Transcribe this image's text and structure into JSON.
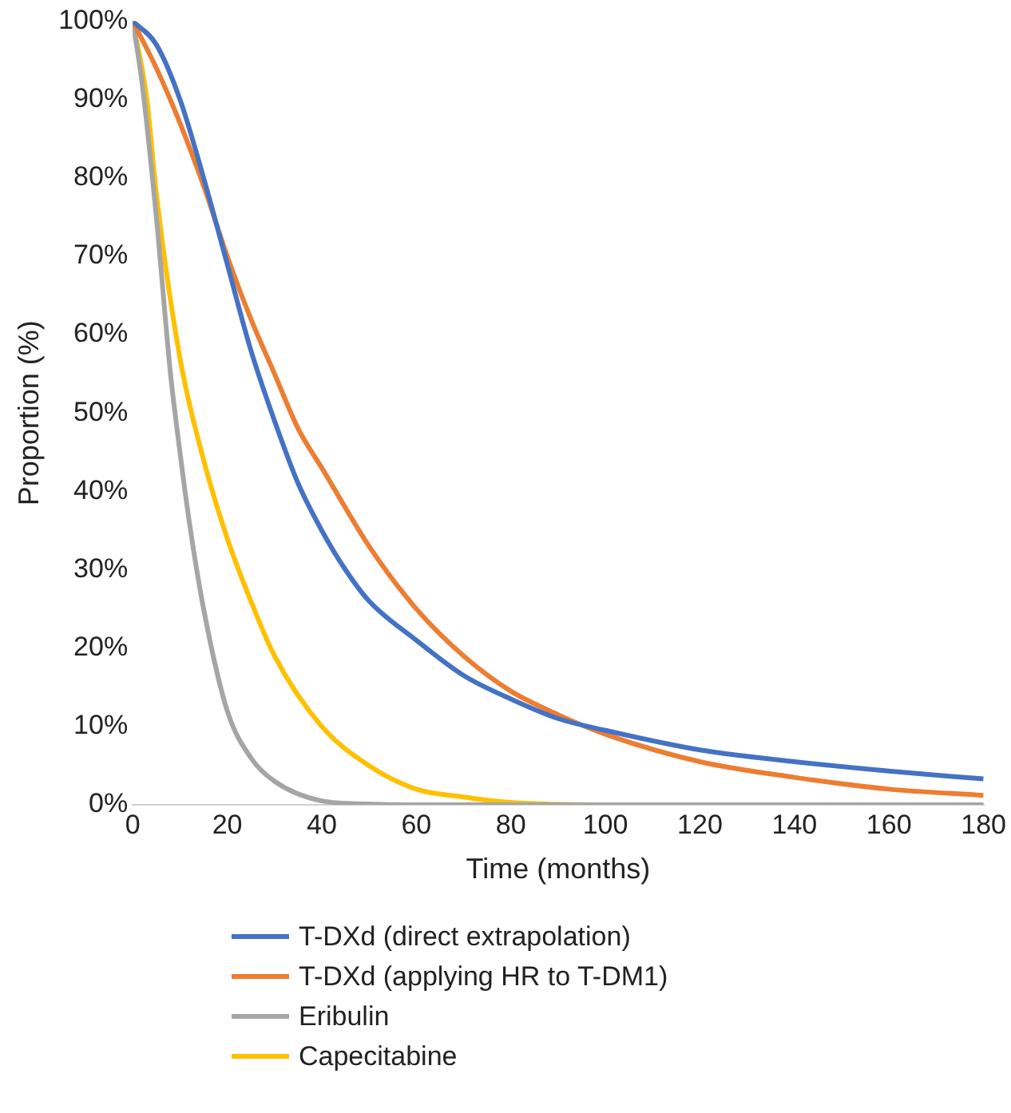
{
  "chart_data": {
    "type": "line",
    "xlabel": "Time (months)",
    "ylabel": "Proportion (%)",
    "xlim": [
      0,
      180
    ],
    "xticks": [
      0,
      20,
      40,
      60,
      80,
      100,
      120,
      140,
      160,
      180
    ],
    "ylim": [
      0,
      100
    ],
    "yticks": [
      {
        "value": 0,
        "label": "0%"
      },
      {
        "value": 10,
        "label": "10%"
      },
      {
        "value": 20,
        "label": "20%"
      },
      {
        "value": 30,
        "label": "30%"
      },
      {
        "value": 40,
        "label": "40%"
      },
      {
        "value": 50,
        "label": "50%"
      },
      {
        "value": 60,
        "label": "60%"
      },
      {
        "value": 70,
        "label": "70%"
      },
      {
        "value": 80,
        "label": "80%"
      },
      {
        "value": 90,
        "label": "90%"
      },
      {
        "value": 100,
        "label": "100%"
      }
    ],
    "grid": false,
    "legend": "bottom",
    "marker": "none",
    "line_style": "solid",
    "series": [
      {
        "name": "T-DXd (direct extrapolation)",
        "color": "#4472c4",
        "x": [
          0,
          5,
          10,
          15,
          20,
          25,
          30,
          35,
          40,
          45,
          50,
          60,
          70,
          80,
          90,
          100,
          120,
          140,
          160,
          180
        ],
        "values": [
          100,
          97,
          90,
          80,
          69,
          58,
          49,
          41,
          35,
          30,
          26,
          21,
          16.5,
          13.5,
          11,
          9.5,
          7,
          5.5,
          4.3,
          3.3
        ]
      },
      {
        "name": "T-DXd (applying HR to T-DM1)",
        "color": "#ed7d31",
        "x": [
          0,
          5,
          10,
          15,
          20,
          25,
          30,
          35,
          40,
          50,
          60,
          70,
          80,
          90,
          100,
          120,
          140,
          160,
          180
        ],
        "values": [
          100,
          94,
          87,
          79,
          70,
          62,
          55,
          48,
          43,
          33,
          25,
          19,
          14.5,
          11.5,
          9,
          5.5,
          3.5,
          2,
          1.2
        ]
      },
      {
        "name": "Eribulin",
        "color": "#a5a5a5",
        "x": [
          0,
          2,
          5,
          8,
          10,
          12,
          15,
          20,
          25,
          30,
          40,
          50,
          60,
          180
        ],
        "values": [
          100,
          92,
          75,
          55,
          45,
          36,
          25,
          12,
          6,
          3,
          0.5,
          0.1,
          0,
          0
        ]
      },
      {
        "name": "Capecitabine",
        "color": "#ffc000",
        "x": [
          0,
          3,
          5,
          10,
          15,
          20,
          25,
          30,
          40,
          50,
          60,
          70,
          80,
          100,
          180
        ],
        "values": [
          100,
          90,
          78,
          57,
          44,
          34,
          26,
          19,
          10,
          5,
          2,
          1,
          0.3,
          0,
          0
        ]
      }
    ]
  }
}
